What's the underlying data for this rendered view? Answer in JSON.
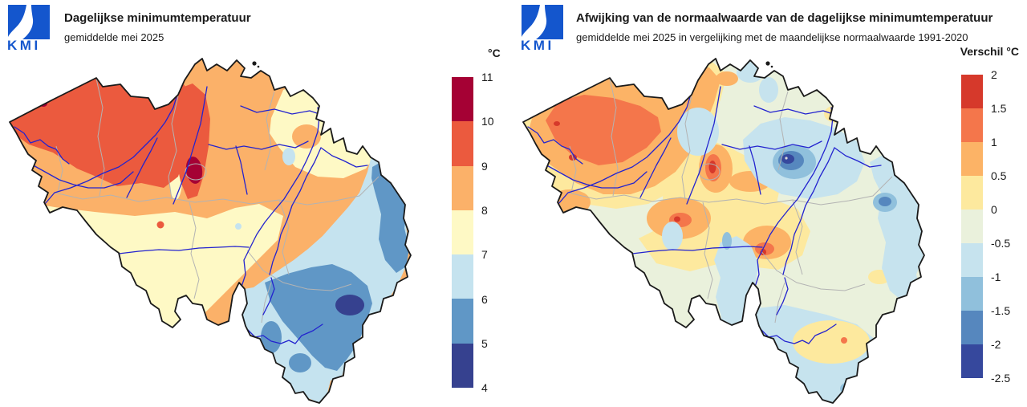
{
  "page": {
    "background": "#ffffff"
  },
  "map_colors": {
    "border": "#1a1a1a",
    "province": "#b3b3b3",
    "river": "#2323cf",
    "logo_blue": "#1456cd",
    "station_dot": "#d9d9d9",
    "exclave_dot": "#1a1a1a"
  },
  "panels": [
    {
      "logo_text": "KMI",
      "title": "Dagelijkse minimumtemperatuur",
      "subtitle": "gemiddelde mei 2025",
      "legend": {
        "title": "°C",
        "bins": [
          {
            "range": "10–11",
            "color": "#a50134"
          },
          {
            "range": "9–10",
            "color": "#eb5a3e"
          },
          {
            "range": "8–9",
            "color": "#fbb169"
          },
          {
            "range": "7–8",
            "color": "#fef9c5"
          },
          {
            "range": "6–7",
            "color": "#c5e3ef"
          },
          {
            "range": "5–6",
            "color": "#6097c6"
          },
          {
            "range": "4–5",
            "color": "#36418f"
          }
        ],
        "ticks": [
          "11",
          "10",
          "9",
          "8",
          "7",
          "6",
          "5",
          "4"
        ]
      }
    },
    {
      "logo_text": "KMI",
      "title": "Afwijking van de normaalwaarde van de dagelijkse minimumtemperatuur",
      "subtitle": "gemiddelde mei 2025 in vergelijking met de maandelijkse normaalwaarde 1991-2020",
      "legend": {
        "title": "Verschil °C",
        "bins": [
          {
            "range": "1.5–2",
            "color": "#d6392b"
          },
          {
            "range": "1–1.5",
            "color": "#f4764b"
          },
          {
            "range": "0.5–1",
            "color": "#fcb366"
          },
          {
            "range": "0–0.5",
            "color": "#fde99e"
          },
          {
            "range": "-0.5–0",
            "color": "#eaf1dc"
          },
          {
            "range": "-1–-0.5",
            "color": "#c6e3ee"
          },
          {
            "range": "-1.5–-1",
            "color": "#90c0dc"
          },
          {
            "range": "-2–-1.5",
            "color": "#5687be"
          },
          {
            "range": "-2.5–-2",
            "color": "#36489d"
          }
        ],
        "ticks": [
          "2",
          "1.5",
          "1",
          "0.5",
          "0",
          "-0.5",
          "-1",
          "-1.5",
          "-2",
          "-2.5"
        ]
      }
    }
  ],
  "chart_data": [
    {
      "type": "choropleth_map",
      "region": "Belgium",
      "title": "Dagelijkse minimumtemperatuur",
      "subtitle": "gemiddelde mei 2025",
      "units": "°C",
      "scale_min": 4,
      "scale_max": 11,
      "bin_edges": [
        4,
        5,
        6,
        7,
        8,
        9,
        10,
        11
      ],
      "palette_low_to_high": [
        "#36418f",
        "#6097c6",
        "#c5e3ef",
        "#fef9c5",
        "#fbb169",
        "#eb5a3e",
        "#a50134"
      ],
      "pattern": "warmest (9-11 °C) in northwest Flanders and a spot near Brussels; coolest (4-6 °C) in the southeastern Ardennes"
    },
    {
      "type": "choropleth_map",
      "region": "Belgium",
      "title": "Afwijking van de normaalwaarde van de dagelijkse minimumtemperatuur",
      "subtitle": "gemiddelde mei 2025 in vergelijking met de maandelijkse normaalwaarde 1991-2020",
      "units": "°C",
      "scale_min": -2.5,
      "scale_max": 2,
      "bin_edges": [
        -2.5,
        -2,
        -1.5,
        -1,
        -0.5,
        0,
        0.5,
        1,
        1.5,
        2
      ],
      "palette_low_to_high": [
        "#36489d",
        "#5687be",
        "#90c0dc",
        "#c6e3ee",
        "#eaf1dc",
        "#fde99e",
        "#fcb366",
        "#f4764b",
        "#d6392b"
      ],
      "pattern": "positive anomalies (+0.5 to +2) in the west and center, strong negative spot (-2 to -2.5) in the northeast, mixed mild anomalies elsewhere"
    }
  ]
}
